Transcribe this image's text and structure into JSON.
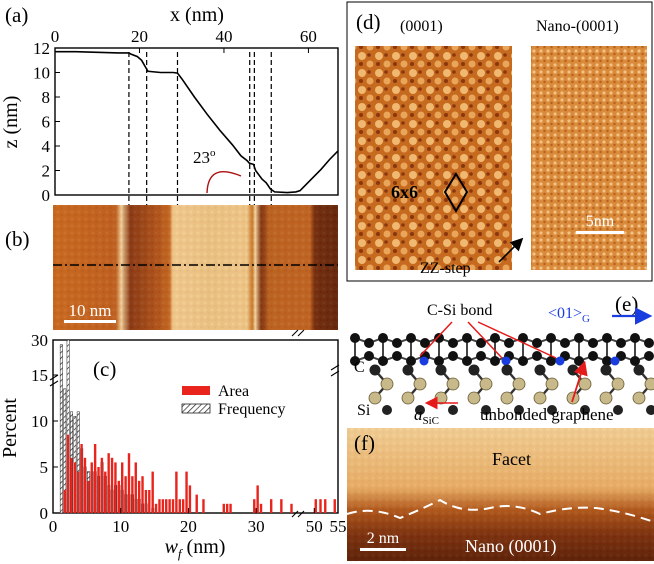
{
  "figure": {
    "panel_labels": {
      "a": "(a)",
      "b": "(b)",
      "c": "(c)",
      "d": "(d)",
      "e": "(e)",
      "f": "(f)"
    }
  },
  "colors": {
    "area_red": "#e8241c",
    "afm_orange": "#c8681a",
    "afm_bright": "#f0c88a",
    "afm_dark": "#5a1a08",
    "arrow_blue": "#1a3de0",
    "red_arrow": "#e51a1a"
  },
  "chart_data": [
    {
      "id": "a",
      "type": "line",
      "xlabel": "x (nm)",
      "ylabel": "z (nm)",
      "xlim": [
        0,
        67
      ],
      "ylim": [
        0,
        12
      ],
      "x_ticks": [
        "0",
        "20",
        "40",
        "60"
      ],
      "y_ticks": [
        "0",
        "2",
        "4",
        "6",
        "8",
        "10",
        "12"
      ],
      "annotation": "23",
      "annotation_sup": "o",
      "series": [
        {
          "x": [
            0,
            5,
            10,
            15,
            17.5,
            18,
            19.5,
            20.5,
            21.5,
            22,
            25,
            28,
            29,
            30,
            33,
            36,
            39,
            42,
            44,
            45.5,
            46,
            47,
            47.5,
            49,
            50,
            51,
            52,
            55,
            57,
            58,
            59,
            61,
            63,
            65,
            67
          ],
          "y": [
            11.7,
            11.7,
            11.65,
            11.6,
            11.6,
            11.5,
            11.3,
            11.0,
            10.4,
            10.1,
            10.0,
            10.0,
            9.95,
            9.5,
            8.0,
            6.6,
            5.3,
            4.1,
            3.2,
            2.8,
            2.6,
            2.5,
            2.0,
            1.3,
            1.0,
            0.5,
            0.25,
            0.2,
            0.25,
            0.35,
            0.7,
            1.4,
            2.1,
            2.9,
            3.6
          ]
        }
      ],
      "dashed_guides_x": [
        17.5,
        21.7,
        29.0,
        46.1,
        47.2,
        51.2
      ]
    },
    {
      "id": "c",
      "type": "bar",
      "xlabel": "w",
      "xlabel_sub": "f",
      "xlabel_unit": "(nm)",
      "ylabel": "Percent",
      "ylim": [
        0,
        30
      ],
      "y_ticks": [
        "0",
        "5",
        "10",
        "15",
        "30"
      ],
      "x_ticks": [
        "0",
        "10",
        "20",
        "30",
        "50",
        "55"
      ],
      "legend": [
        "Area",
        "Frequency"
      ],
      "legend_position": "top-right",
      "series": [
        {
          "name": "Area",
          "x": [
            1.5,
            2,
            2.5,
            3,
            3.5,
            4,
            4.5,
            5,
            5.5,
            6,
            6.5,
            7,
            7.5,
            8,
            8.5,
            9,
            9.5,
            10,
            10.5,
            11,
            11.5,
            12,
            12.5,
            13,
            13.5,
            14,
            14.5,
            15,
            15.5,
            16,
            16.5,
            17,
            17.5,
            18,
            18.5,
            19,
            19.5,
            20,
            21,
            22,
            25,
            25.5,
            26,
            29.5,
            30,
            30.5,
            32,
            33.5,
            35,
            50,
            51,
            52,
            54
          ],
          "y": [
            2.5,
            8.5,
            6.0,
            5.5,
            4.5,
            7.5,
            6.0,
            3.5,
            5.5,
            7.5,
            5.0,
            6.0,
            4.5,
            6.5,
            6.0,
            5.5,
            3.5,
            5.5,
            4.0,
            6.5,
            4.0,
            5.5,
            3.5,
            4.0,
            2.5,
            2.5,
            4.5,
            1.0,
            1.5,
            1.5,
            1.5,
            1.5,
            1.5,
            4.5,
            1.5,
            1.5,
            4.5,
            3.0,
            2.0,
            1.5,
            1.0,
            1.0,
            1.0,
            1.5,
            3.0,
            1.0,
            1.5,
            1.5,
            1.0,
            1.5,
            1.5,
            1.5,
            1.5
          ]
        },
        {
          "name": "Frequency",
          "x": [
            1.5,
            2,
            2.5,
            3,
            3.5,
            4,
            4.5,
            5,
            5.5,
            6,
            6.5,
            7,
            7.5,
            8,
            8.5,
            9,
            9.5,
            10,
            10.5,
            11,
            11.5,
            12,
            12.5,
            13,
            13.5,
            14,
            15
          ],
          "y": [
            28.0,
            13.5,
            30.0,
            11.0,
            10.5,
            11.0,
            7.0,
            5.0,
            4.5,
            4.5,
            4.5,
            4.0,
            5.5,
            4.0,
            3.0,
            2.5,
            3.0,
            3.0,
            2.5,
            2.0,
            2.0,
            2.0,
            1.5,
            1.5,
            1.0,
            1.0,
            0.5
          ]
        }
      ]
    }
  ],
  "panel_b": {
    "scalebar": "10 nm"
  },
  "panel_d": {
    "left_title": "(0001)",
    "right_title": "Nano-(0001)",
    "label_6x6": "6x6",
    "scalebar": "5nm",
    "step_label": "ZZ-step"
  },
  "panel_e": {
    "bond_label": "C-Si bond",
    "direction_label": "<01>",
    "direction_sub": "G",
    "c_label": "C",
    "si_label": "Si",
    "a_label": "a",
    "a_sub": "SiC",
    "unbonded_label": "unbonded graphene"
  },
  "panel_f": {
    "facet_label": "Facet",
    "nano_label": "Nano (0001)",
    "scalebar": "2 nm"
  }
}
